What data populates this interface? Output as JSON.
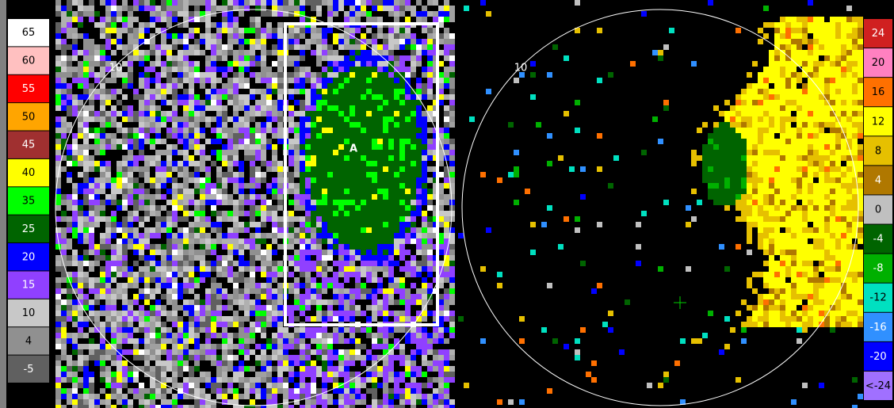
{
  "left_panel": {
    "range_label": "10",
    "annotation": "A",
    "legend": [
      {
        "label": "65",
        "color": "#ffffff"
      },
      {
        "label": "60",
        "color": "#ffc0c0"
      },
      {
        "label": "55",
        "color": "#ff0000"
      },
      {
        "label": "50",
        "color": "#ffa500"
      },
      {
        "label": "45",
        "color": "#a03030"
      },
      {
        "label": "40",
        "color": "#ffff00"
      },
      {
        "label": "35",
        "color": "#00ff00"
      },
      {
        "label": "25",
        "color": "#006400"
      },
      {
        "label": "20",
        "color": "#0000ff"
      },
      {
        "label": "15",
        "color": "#9040ff"
      },
      {
        "label": "10",
        "color": "#c8c8c8"
      },
      {
        "label": "4",
        "color": "#909090"
      },
      {
        "label": "-5",
        "color": "#606060"
      }
    ]
  },
  "right_panel": {
    "range_label": "10",
    "legend": [
      {
        "label": "24",
        "color": "#d02020"
      },
      {
        "label": "20",
        "color": "#ff80c0"
      },
      {
        "label": "16",
        "color": "#ff7000"
      },
      {
        "label": "12",
        "color": "#ffff00"
      },
      {
        "label": "8",
        "color": "#e6c000"
      },
      {
        "label": "4",
        "color": "#b07800"
      },
      {
        "label": "0",
        "color": "#c0c0c0"
      },
      {
        "label": "-4",
        "color": "#006400"
      },
      {
        "label": "-8",
        "color": "#00b000"
      },
      {
        "label": "-12",
        "color": "#00e0c0"
      },
      {
        "label": "-16",
        "color": "#3090ff"
      },
      {
        "label": "-20",
        "color": "#0000ff"
      },
      {
        "label": "<-24",
        "color": "#a070ff"
      }
    ]
  }
}
